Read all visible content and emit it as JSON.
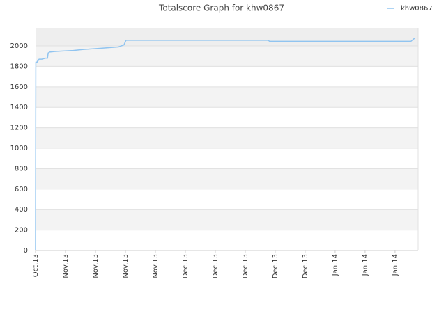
{
  "chart_data": {
    "type": "line",
    "title": "Totalscore Graph for khw0867",
    "x": [
      0,
      0.01,
      0.05,
      0.07,
      0.12,
      0.21,
      0.33,
      0.4,
      0.42,
      0.47,
      0.63,
      0.91,
      1.26,
      1.6,
      2.07,
      2.53,
      2.77,
      2.95,
      3.02,
      7.77,
      7.81,
      12.53,
      12.65
    ],
    "series": [
      {
        "name": "khw0867",
        "color": "#90c4f0",
        "values": [
          0,
          1840,
          1840,
          1860,
          1870,
          1870,
          1880,
          1880,
          1930,
          1940,
          1945,
          1950,
          1955,
          1965,
          1975,
          1985,
          1990,
          2010,
          2055,
          2055,
          2045,
          2045,
          2075
        ]
      }
    ],
    "xlim": [
      0,
      12.77
    ],
    "xticks": [
      {
        "value": 0,
        "label": "Oct.13"
      },
      {
        "value": 1,
        "label": "Nov.13"
      },
      {
        "value": 2,
        "label": "Nov.13"
      },
      {
        "value": 3,
        "label": "Nov.13"
      },
      {
        "value": 4,
        "label": "Nov.13"
      },
      {
        "value": 5,
        "label": "Dec.13"
      },
      {
        "value": 6,
        "label": "Dec.13"
      },
      {
        "value": 7,
        "label": "Dec.13"
      },
      {
        "value": 8,
        "label": "Dec.13"
      },
      {
        "value": 9,
        "label": "Dec.13"
      },
      {
        "value": 10,
        "label": "Jan.14"
      },
      {
        "value": 11,
        "label": "Jan.14"
      },
      {
        "value": 12,
        "label": "Jan.14"
      }
    ],
    "ylim": [
      0,
      2177
    ],
    "yticks": [
      0,
      200,
      400,
      600,
      800,
      1000,
      1200,
      1400,
      1600,
      1800,
      2000
    ],
    "grid": true,
    "legend": "top-right"
  }
}
